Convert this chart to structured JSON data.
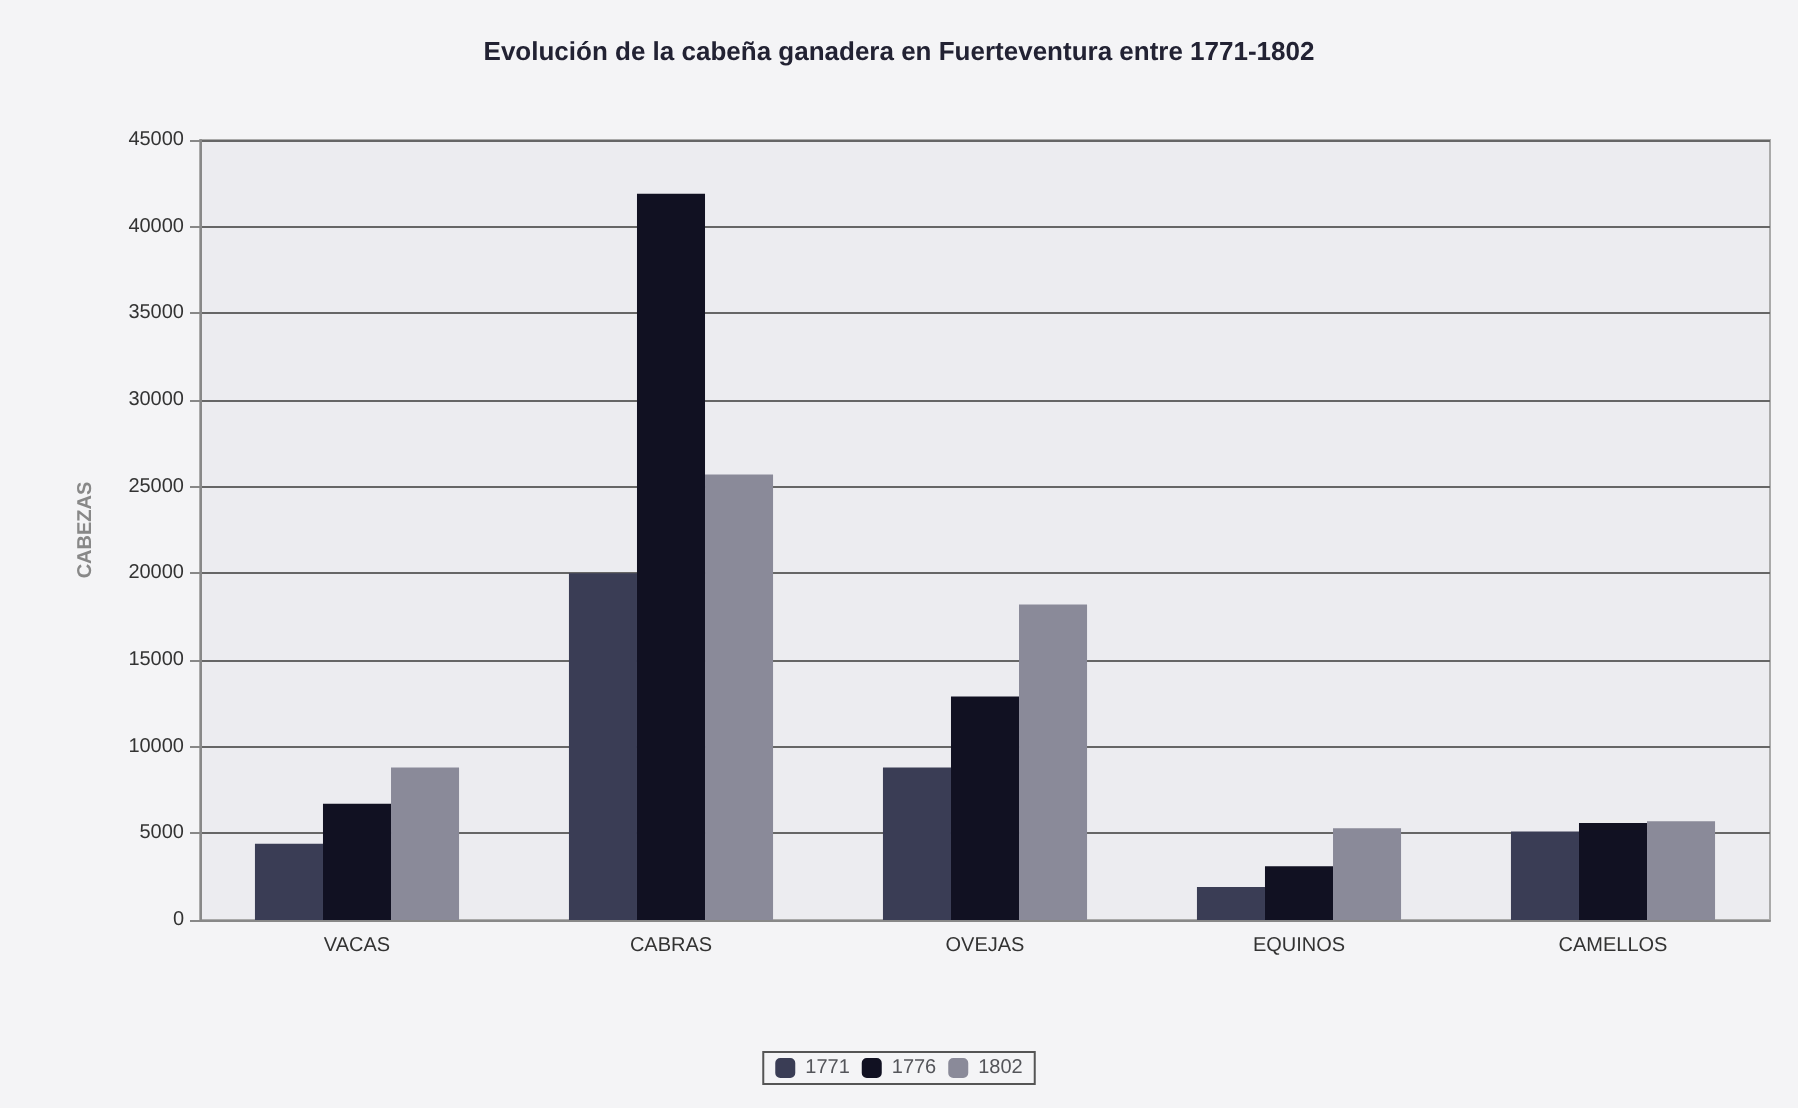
{
  "chart_data": {
    "type": "bar",
    "title": "Evolución de la cabeña ganadera en Fuerteventura entre 1771-1802",
    "ylabel": "CABEZAS",
    "categories": [
      "VACAS",
      "CABRAS",
      "OVEJAS",
      "EQUINOS",
      "CAMELLOS"
    ],
    "series": [
      {
        "name": "1771",
        "color": "#3a3d55",
        "values": [
          4400,
          20000,
          8800,
          1900,
          5100
        ]
      },
      {
        "name": "1776",
        "color": "#111122",
        "values": [
          6700,
          41900,
          12900,
          3100,
          5600
        ]
      },
      {
        "name": "1802",
        "color": "#8a8a99",
        "values": [
          8800,
          25700,
          18200,
          5300,
          5700
        ]
      }
    ],
    "ylim": [
      0,
      45000
    ],
    "yticks": [
      0,
      5000,
      10000,
      15000,
      20000,
      25000,
      30000,
      35000,
      40000,
      45000
    ],
    "grid": "y",
    "legend": "bottom"
  }
}
